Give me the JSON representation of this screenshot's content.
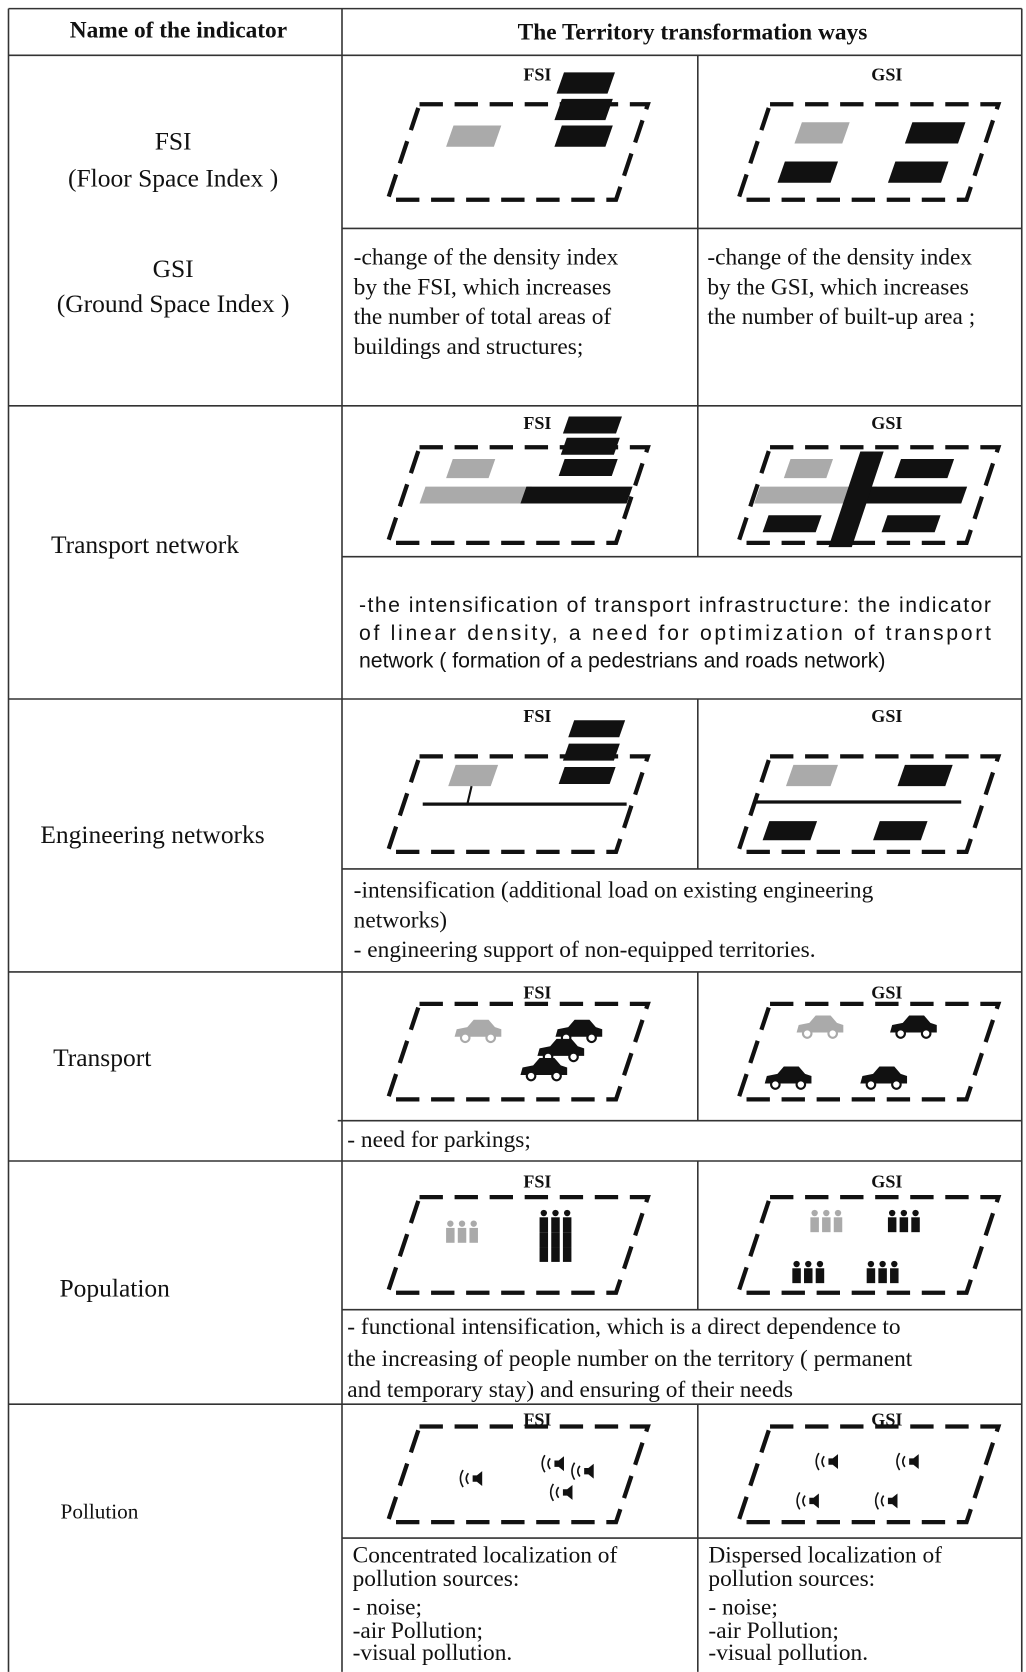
{
  "header": {
    "indicator": "Name of the indicator",
    "ways": "The Territory transformation ways"
  },
  "rows": [
    {
      "indicator": [
        "FSI",
        "(Floor Space Index )",
        "GSI",
        "(Ground Space Index )"
      ],
      "diagram": {
        "fsi": "FSI",
        "gsi": "GSI"
      },
      "description": {
        "fsi": [
          "-change of the density index",
          "by the FSI, which increases",
          "the number of total areas of",
          "buildings and structures;"
        ],
        "gsi": [
          "-change of the density index",
          "by the GSI, which increases",
          "the number of built-up area ;"
        ]
      }
    },
    {
      "indicator": [
        "Transport network"
      ],
      "diagram": {
        "fsi": "FSI",
        "gsi": "GSI"
      },
      "description": {
        "shared": [
          "-the intensification of transport infrastructure: the indicator",
          "of linear density, a need for optimization of  transport",
          "network ( formation of a  pedestrians and roads network)"
        ]
      }
    },
    {
      "indicator": [
        "Engineering networks"
      ],
      "diagram": {
        "fsi": "FSI",
        "gsi": "GSI"
      },
      "description": {
        "shared": [
          "-intensification (additional load on existing engineering",
          "networks)",
          "- engineering support of non-equipped territories."
        ]
      }
    },
    {
      "indicator": [
        "Transport"
      ],
      "diagram": {
        "fsi": "FSI",
        "gsi": "GSI"
      },
      "description": {
        "shared": [
          "- need for parkings;"
        ]
      }
    },
    {
      "indicator": [
        "Population"
      ],
      "diagram": {
        "fsi": "FSI",
        "gsi": "GSI"
      },
      "description": {
        "shared": [
          "- functional intensification, which is a direct dependence to",
          "the increasing of people number on the territory ( permanent",
          "and temporary stay) and ensuring of  their needs"
        ]
      }
    },
    {
      "indicator": [
        "Pollution"
      ],
      "diagram": {
        "fsi": "FSI",
        "gsi": "GSI"
      },
      "description": {
        "fsi": [
          "Concentrated localization  of",
          "pollution sources:",
          "- noise;",
          "-air Pollution;",
          "-visual pollution."
        ],
        "gsi": [
          "Dispersed  localization  of",
          "pollution sources:",
          "- noise;",
          "-air Pollution;",
          "-visual pollution."
        ]
      }
    }
  ]
}
